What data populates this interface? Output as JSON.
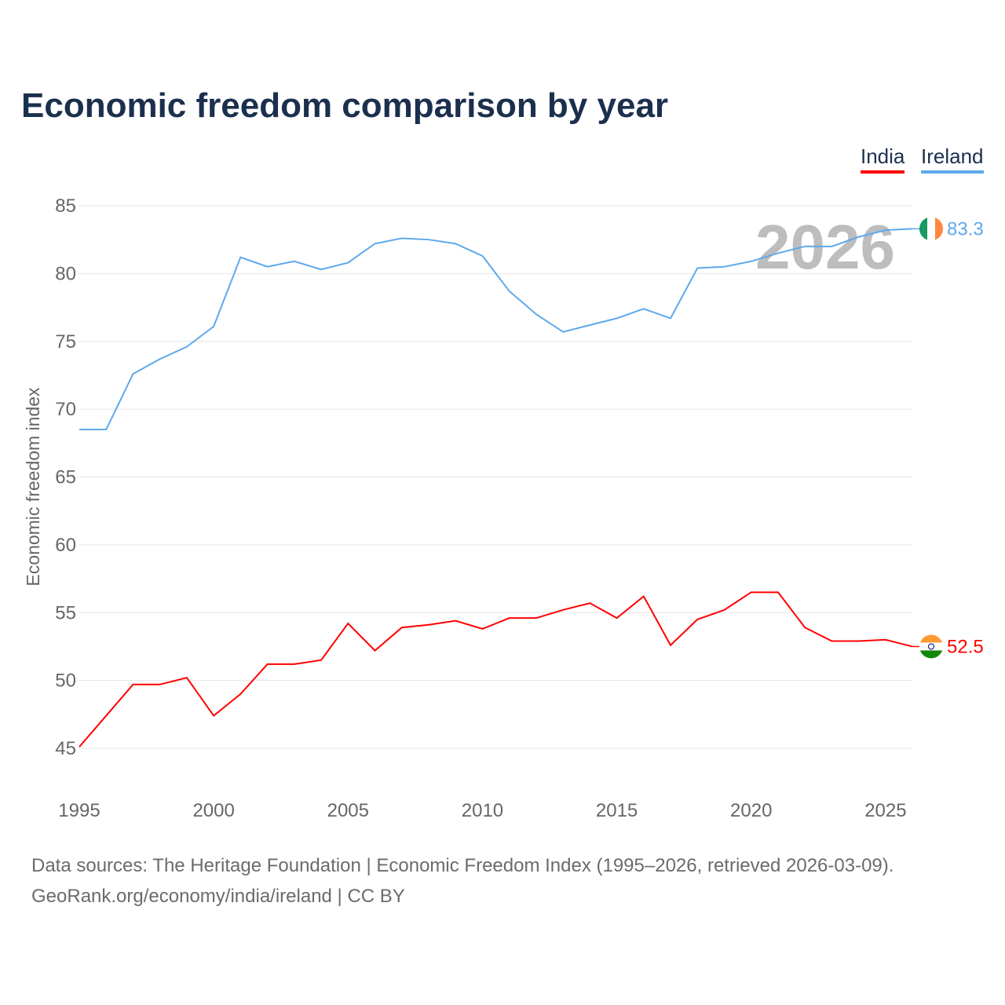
{
  "chart_data": {
    "type": "line",
    "title": "Economic freedom comparison by year",
    "ylabel": "Economic freedom index",
    "xlabel": "",
    "ylim": [
      42,
      87
    ],
    "xlim": [
      1995,
      2026
    ],
    "yticks": [
      45,
      50,
      55,
      60,
      65,
      70,
      75,
      80,
      85
    ],
    "xticks": [
      1995,
      2000,
      2005,
      2010,
      2015,
      2020,
      2025
    ],
    "grid": true,
    "legend_position": "top-right",
    "watermark_year": "2026",
    "x": [
      1995,
      1996,
      1997,
      1998,
      1999,
      2000,
      2001,
      2002,
      2003,
      2004,
      2005,
      2006,
      2007,
      2008,
      2009,
      2010,
      2011,
      2012,
      2013,
      2014,
      2015,
      2016,
      2017,
      2018,
      2019,
      2020,
      2021,
      2022,
      2023,
      2024,
      2025,
      2026
    ],
    "series": [
      {
        "name": "India",
        "color": "#ff0000",
        "end_label": "52.5",
        "values": [
          45.1,
          47.4,
          49.7,
          49.7,
          50.2,
          47.4,
          49.0,
          51.2,
          51.2,
          51.5,
          54.2,
          52.2,
          53.9,
          54.1,
          54.4,
          53.8,
          54.6,
          54.6,
          55.2,
          55.7,
          54.6,
          56.2,
          52.6,
          54.5,
          55.2,
          56.5,
          56.5,
          53.9,
          52.9,
          52.9,
          53.0,
          52.5
        ]
      },
      {
        "name": "Ireland",
        "color": "#5ea8ec",
        "end_label": "83.3",
        "values": [
          68.5,
          68.5,
          72.6,
          73.7,
          74.6,
          76.1,
          81.2,
          80.5,
          80.9,
          80.3,
          80.8,
          82.2,
          82.6,
          82.5,
          82.2,
          81.3,
          78.7,
          77.0,
          75.7,
          76.2,
          76.7,
          77.4,
          76.7,
          80.4,
          80.5,
          80.9,
          81.5,
          82.0,
          82.0,
          82.7,
          83.2,
          83.3
        ]
      }
    ]
  },
  "footer": {
    "line1": "Data sources: The Heritage Foundation | Economic Freedom Index (1995–2026, retrieved 2026-03-09).",
    "line2": "GeoRank.org/economy/india/ireland | CC BY"
  }
}
